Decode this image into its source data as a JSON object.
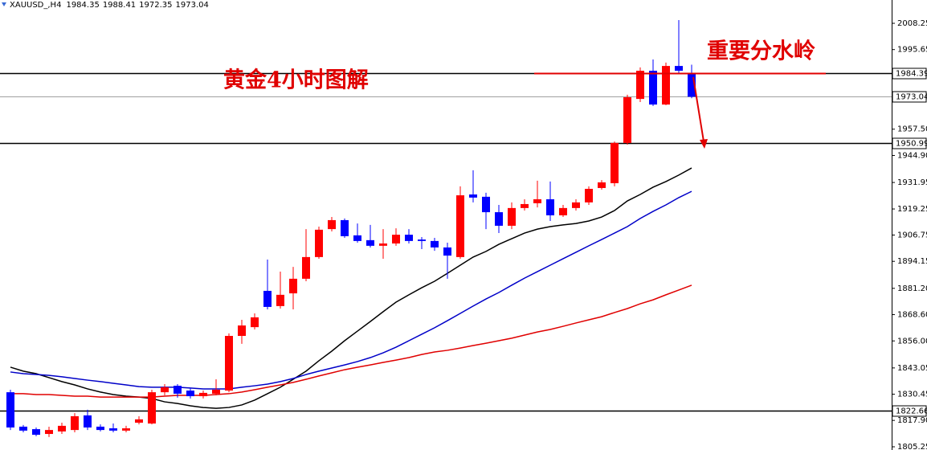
{
  "chart_data": {
    "type": "candlestick",
    "title": "XAUUSD_,H4",
    "ohlc_header": [
      1984.35,
      1988.41,
      1972.35,
      1973.04
    ],
    "annotations": [
      "黄金4小时图解",
      "重要分水岭"
    ],
    "up_color": "#ff0000",
    "down_color": "#0000ff",
    "ylim": [
      1803.71,
      2019.42
    ],
    "yticks": [
      2008.25,
      1995.65,
      {
        "value": 1957.5,
        "label": "1957.50"
      },
      {
        "value": 1944.9,
        "label": "1944.90"
      },
      1931.95,
      1919.25,
      1906.75,
      1894.15,
      {
        "value": 1881.2,
        "label": "1881.20"
      },
      {
        "value": 1868.6,
        "label": "1868.60"
      },
      {
        "value": 1856,
        "label": "1856.00"
      },
      1843.05,
      1830.45,
      {
        "value": 1817.9,
        "label": "1817.90"
      },
      1805.25
    ],
    "levels": [
      {
        "value": 1984.39,
        "color": "#000000"
      },
      {
        "value": 1973.04,
        "color": "#a0a0a0"
      },
      {
        "value": 1950.99,
        "color": "#000000"
      },
      {
        "value": 1822.66,
        "color": "#000000"
      }
    ],
    "candles": {
      "open": [
        1831.4,
        1814.9,
        1813.7,
        1811.4,
        1812.6,
        1813.3,
        1820.3,
        1814.9,
        1814.1,
        1813.0,
        1816.8,
        1816.4,
        1831.4,
        1834.5,
        1832.2,
        1829.5,
        1830.7,
        1832.2,
        1858.4,
        1862.6,
        1880.0,
        1872.7,
        1878.8,
        1885.8,
        1896.2,
        1909.6,
        1913.9,
        1906.6,
        1904.3,
        1901.6,
        1902.7,
        1906.9,
        1904.6,
        1903.9,
        1900.8,
        1896.2,
        1926.2,
        1925.1,
        1917.7,
        1911.2,
        1919.7,
        1922.0,
        1923.9,
        1916.2,
        1919.7,
        1922.4,
        1929.3,
        1931.6,
        1950.9,
        1972.0,
        1985.5,
        1969.3,
        1987.8,
        1984.35
      ],
      "high": [
        1832.6,
        1815.7,
        1814.5,
        1814.9,
        1816.8,
        1821.4,
        1823.0,
        1816.0,
        1816.4,
        1815.3,
        1819.9,
        1832.6,
        1835.3,
        1835.3,
        1833.4,
        1832.2,
        1837.6,
        1859.6,
        1866.1,
        1869.2,
        1895.0,
        1889.2,
        1891.5,
        1909.6,
        1910.8,
        1915.4,
        1914.7,
        1912.3,
        1911.6,
        1909.6,
        1910.0,
        1909.6,
        1905.8,
        1905.4,
        1903.1,
        1930.1,
        1937.8,
        1927.0,
        1921.2,
        1922.4,
        1923.9,
        1932.8,
        1932.4,
        1921.2,
        1923.9,
        1930.1,
        1933.1,
        1951.6,
        1974.0,
        1987.1,
        1990.9,
        1989.4,
        2009.8,
        1988.41
      ],
      "low": [
        1813.3,
        1812.2,
        1810.3,
        1809.9,
        1811.4,
        1812.2,
        1813.3,
        1812.6,
        1812.2,
        1812.2,
        1816.0,
        1816.0,
        1829.9,
        1828.8,
        1828.4,
        1828.4,
        1829.9,
        1831.4,
        1854.6,
        1861.5,
        1871.1,
        1871.5,
        1871.1,
        1884.6,
        1895.4,
        1908.5,
        1905.4,
        1903.1,
        1900.8,
        1895.4,
        1901.6,
        1902.7,
        1900.0,
        1899.2,
        1885.8,
        1895.4,
        1922.4,
        1909.6,
        1907.7,
        1909.6,
        1918.5,
        1920.0,
        1913.5,
        1915.4,
        1918.5,
        1921.2,
        1928.5,
        1930.1,
        1950.1,
        1970.5,
        1968.6,
        1969.0,
        1984.0,
        1972.35
      ],
      "close": [
        1814.5,
        1813.0,
        1811.0,
        1813.3,
        1815.3,
        1819.9,
        1814.5,
        1813.3,
        1813.0,
        1814.1,
        1818.4,
        1831.4,
        1833.8,
        1830.7,
        1829.5,
        1831.1,
        1832.6,
        1858.4,
        1863.4,
        1867.3,
        1872.3,
        1878.1,
        1885.8,
        1896.2,
        1909.3,
        1913.9,
        1906.2,
        1903.9,
        1901.6,
        1902.7,
        1906.9,
        1903.9,
        1903.9,
        1900.8,
        1896.9,
        1925.8,
        1924.7,
        1917.7,
        1911.2,
        1919.7,
        1921.6,
        1923.9,
        1916.2,
        1919.7,
        1922.4,
        1928.9,
        1932.0,
        1950.9,
        1972.8,
        1985.5,
        1969.3,
        1987.8,
        1985.5,
        1973.04
      ]
    },
    "moving_averages": [
      {
        "color": "#000000",
        "values": [
          1843.4,
          1841.5,
          1840.3,
          1838.4,
          1836.5,
          1834.9,
          1833.0,
          1831.5,
          1830.3,
          1829.5,
          1829.1,
          1828.4,
          1826.8,
          1826.0,
          1824.9,
          1824.1,
          1823.7,
          1824.1,
          1825.3,
          1827.6,
          1830.7,
          1833.8,
          1837.6,
          1841.5,
          1846.5,
          1851.1,
          1856.1,
          1860.7,
          1865.3,
          1870.0,
          1874.6,
          1878.1,
          1881.5,
          1884.6,
          1888.4,
          1892.3,
          1896.2,
          1898.9,
          1902.3,
          1905.0,
          1907.7,
          1909.6,
          1910.8,
          1911.6,
          1912.3,
          1913.5,
          1915.4,
          1918.5,
          1923.1,
          1926.2,
          1929.7,
          1932.4,
          1935.5,
          1938.9
        ]
      },
      {
        "color": "#0000c8",
        "values": [
          1841.1,
          1840.3,
          1839.9,
          1839.5,
          1838.8,
          1838.0,
          1837.2,
          1836.5,
          1835.7,
          1834.9,
          1834.1,
          1833.8,
          1833.8,
          1833.8,
          1833.4,
          1833.0,
          1833.0,
          1833.0,
          1833.8,
          1834.5,
          1835.3,
          1836.5,
          1838.0,
          1839.9,
          1841.5,
          1843.0,
          1844.5,
          1846.1,
          1848.0,
          1850.3,
          1853.0,
          1856.1,
          1859.2,
          1862.3,
          1865.7,
          1869.2,
          1872.7,
          1876.1,
          1879.2,
          1882.7,
          1886.1,
          1889.2,
          1892.3,
          1895.4,
          1898.5,
          1901.6,
          1904.6,
          1907.7,
          1910.8,
          1914.7,
          1918.1,
          1921.2,
          1924.7,
          1927.7
        ]
      },
      {
        "color": "#e00000",
        "values": [
          1830.7,
          1830.7,
          1830.3,
          1830.3,
          1829.9,
          1829.5,
          1829.5,
          1829.1,
          1829.1,
          1829.1,
          1829.1,
          1829.1,
          1829.5,
          1829.9,
          1829.9,
          1829.9,
          1830.3,
          1830.7,
          1831.5,
          1832.6,
          1833.8,
          1834.9,
          1836.1,
          1837.6,
          1839.2,
          1840.7,
          1842.2,
          1843.4,
          1844.5,
          1845.7,
          1846.8,
          1848.0,
          1849.5,
          1850.7,
          1851.5,
          1852.6,
          1853.8,
          1854.9,
          1856.1,
          1857.3,
          1858.8,
          1860.3,
          1861.5,
          1863.0,
          1864.6,
          1866.1,
          1867.6,
          1869.6,
          1871.5,
          1873.8,
          1875.7,
          1878.1,
          1880.4,
          1882.7
        ]
      }
    ]
  }
}
